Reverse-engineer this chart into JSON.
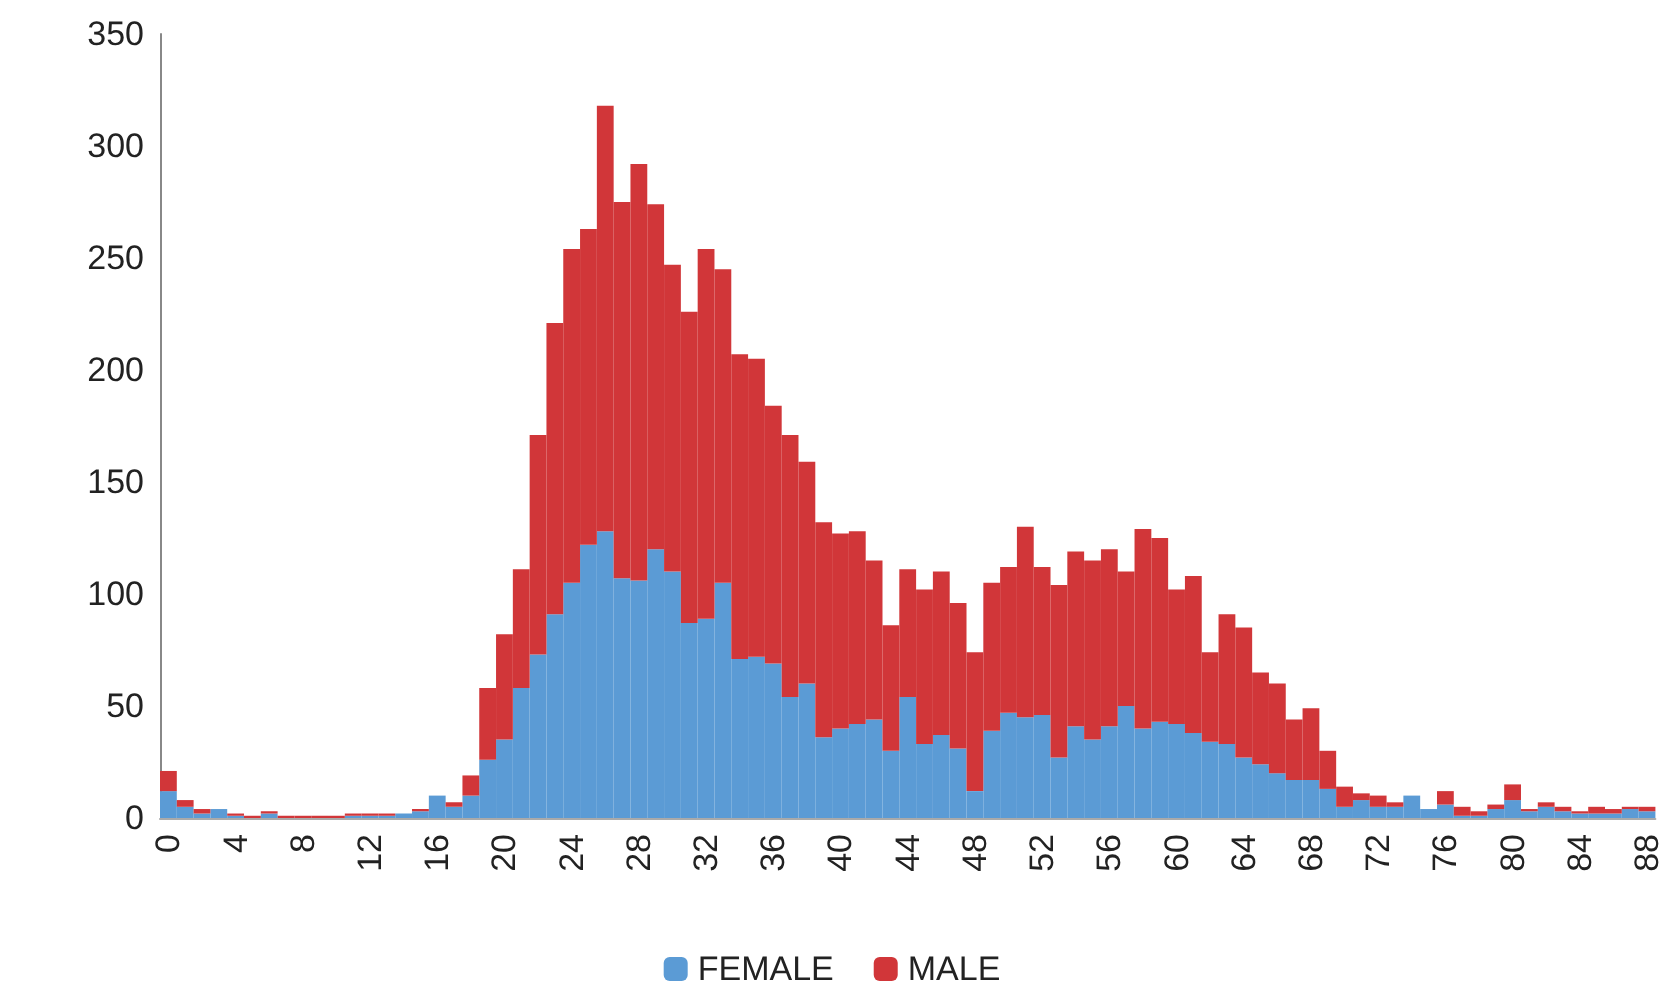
{
  "chart_data": {
    "type": "bar",
    "stacked": true,
    "categories": [
      "0",
      null,
      null,
      null,
      "4",
      null,
      null,
      null,
      "8",
      null,
      null,
      null,
      "12",
      null,
      null,
      null,
      "16",
      null,
      null,
      null,
      "20",
      null,
      null,
      null,
      "24",
      null,
      null,
      null,
      "28",
      null,
      null,
      null,
      "32",
      null,
      null,
      null,
      "36",
      null,
      null,
      null,
      "40",
      null,
      null,
      null,
      "44",
      null,
      null,
      null,
      "48",
      null,
      null,
      null,
      "52",
      null,
      null,
      null,
      "56",
      null,
      null,
      null,
      "60",
      null,
      null,
      null,
      "64",
      null,
      null,
      null,
      "68",
      null,
      null,
      null,
      "72",
      null,
      null,
      null,
      "76",
      null,
      null,
      null,
      "80",
      null,
      null,
      null,
      "84",
      null,
      null,
      null,
      "88"
    ],
    "series": [
      {
        "name": "FEMALE",
        "color": "#5b9bd5",
        "values": [
          12,
          5,
          2,
          4,
          1,
          0,
          2,
          0,
          0,
          0,
          0,
          1,
          1,
          1,
          2,
          3,
          10,
          5,
          10,
          26,
          35,
          58,
          73,
          91,
          105,
          122,
          128,
          107,
          106,
          120,
          110,
          87,
          89,
          105,
          71,
          72,
          69,
          54,
          60,
          36,
          40,
          42,
          44,
          30,
          54,
          33,
          37,
          31,
          12,
          39,
          47,
          45,
          46,
          27,
          41,
          35,
          41,
          50,
          40,
          43,
          42,
          38,
          34,
          33,
          27,
          24,
          20,
          17,
          17,
          13,
          5,
          8,
          5,
          5,
          10,
          4,
          6,
          1,
          1,
          4,
          8,
          3,
          5,
          3,
          2,
          2,
          2,
          4,
          3
        ]
      },
      {
        "name": "MALE",
        "color": "#d13639",
        "values": [
          9,
          3,
          2,
          0,
          1,
          1,
          1,
          1,
          1,
          1,
          1,
          1,
          1,
          1,
          0,
          1,
          0,
          2,
          9,
          32,
          47,
          53,
          98,
          130,
          149,
          141,
          190,
          168,
          186,
          154,
          137,
          139,
          165,
          140,
          136,
          133,
          115,
          117,
          99,
          96,
          87,
          86,
          71,
          56,
          57,
          69,
          73,
          65,
          62,
          66,
          65,
          85,
          66,
          77,
          78,
          80,
          79,
          60,
          89,
          82,
          60,
          70,
          40,
          58,
          58,
          41,
          40,
          27,
          32,
          17,
          9,
          3,
          5,
          2,
          0,
          0,
          6,
          4,
          2,
          2,
          7,
          1,
          2,
          2,
          1,
          3,
          2,
          1,
          2
        ]
      }
    ],
    "ylim": [
      0,
      350
    ],
    "yticks": [
      0,
      50,
      100,
      150,
      200,
      250,
      300,
      350
    ],
    "legend": "bottom",
    "grid": false
  }
}
